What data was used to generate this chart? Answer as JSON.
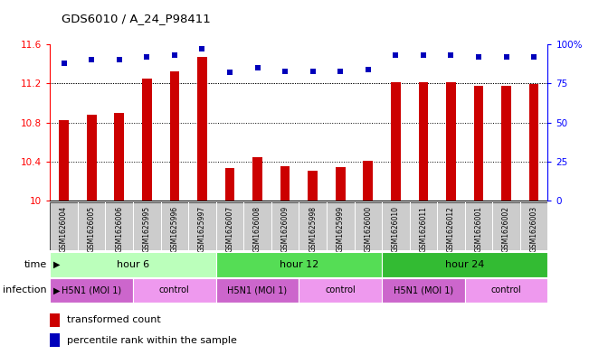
{
  "title": "GDS6010 / A_24_P98411",
  "samples": [
    "GSM1626004",
    "GSM1626005",
    "GSM1626006",
    "GSM1625995",
    "GSM1625996",
    "GSM1625997",
    "GSM1626007",
    "GSM1626008",
    "GSM1626009",
    "GSM1625998",
    "GSM1625999",
    "GSM1626000",
    "GSM1626010",
    "GSM1626011",
    "GSM1626012",
    "GSM1626001",
    "GSM1626002",
    "GSM1626003"
  ],
  "bar_values": [
    10.82,
    10.88,
    10.9,
    11.25,
    11.32,
    11.47,
    10.33,
    10.44,
    10.35,
    10.31,
    10.34,
    10.41,
    11.21,
    11.21,
    11.21,
    11.18,
    11.18,
    11.19
  ],
  "dot_values": [
    88,
    90,
    90,
    92,
    93,
    97,
    82,
    85,
    83,
    83,
    83,
    84,
    93,
    93,
    93,
    92,
    92,
    92
  ],
  "ylim_left": [
    10.0,
    11.6
  ],
  "ylim_right": [
    0,
    100
  ],
  "yticks_left": [
    10,
    10.4,
    10.8,
    11.2,
    11.6
  ],
  "ytick_labels_left": [
    "10",
    "10.4",
    "10.8",
    "11.2",
    "11.6"
  ],
  "yticks_right": [
    0,
    25,
    50,
    75,
    100
  ],
  "ytick_labels_right": [
    "0",
    "25",
    "50",
    "75",
    "100%"
  ],
  "bar_color": "#cc0000",
  "dot_color": "#0000bb",
  "bar_width": 0.35,
  "time_colors": [
    "#bbffbb",
    "#55dd55",
    "#33bb33"
  ],
  "time_labels": [
    "hour 6",
    "hour 12",
    "hour 24"
  ],
  "time_ranges": [
    [
      0,
      6
    ],
    [
      6,
      12
    ],
    [
      12,
      18
    ]
  ],
  "infection_colors": [
    "#cc66cc",
    "#ee99ee"
  ],
  "infection_pattern": [
    [
      0,
      3,
      "H5N1 (MOI 1)",
      "#cc66cc"
    ],
    [
      3,
      6,
      "control",
      "#ee99ee"
    ],
    [
      6,
      9,
      "H5N1 (MOI 1)",
      "#cc66cc"
    ],
    [
      9,
      12,
      "control",
      "#ee99ee"
    ],
    [
      12,
      15,
      "H5N1 (MOI 1)",
      "#cc66cc"
    ],
    [
      15,
      18,
      "control",
      "#ee99ee"
    ]
  ],
  "sample_bg_color": "#cccccc",
  "legend_transformed": "transformed count",
  "legend_percentile": "percentile rank within the sample",
  "time_label": "time",
  "infection_label": "infection"
}
